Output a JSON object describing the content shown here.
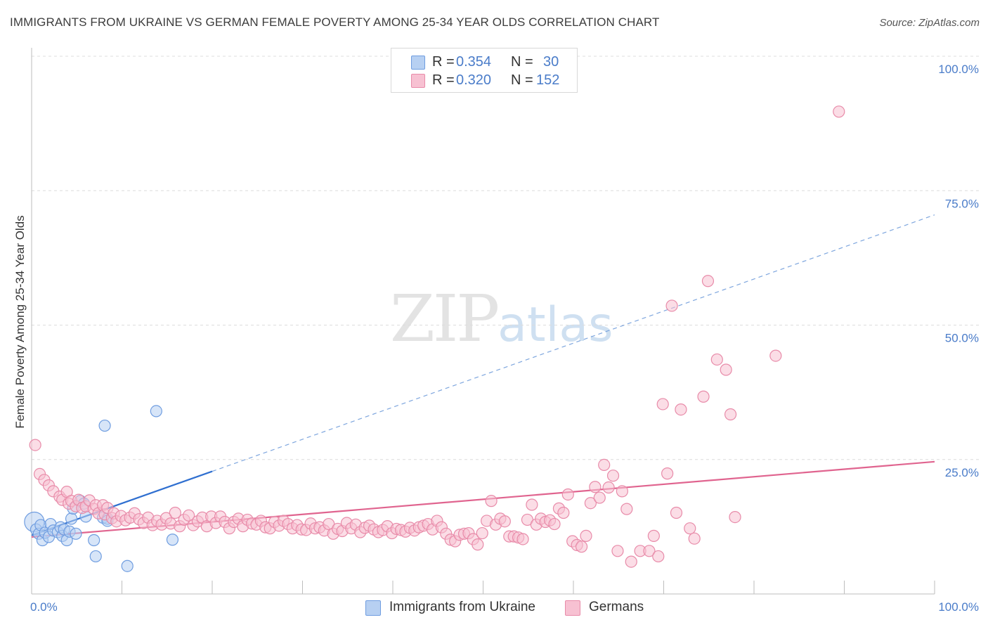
{
  "header": {
    "title": "IMMIGRANTS FROM UKRAINE VS GERMAN FEMALE POVERTY AMONG 25-34 YEAR OLDS CORRELATION CHART",
    "source": "Source: ZipAtlas.com"
  },
  "legend_top": {
    "rows": [
      {
        "r_label": "R =",
        "r_value": "0.354",
        "n_label": "N =",
        "n_value": "30"
      },
      {
        "r_label": "R =",
        "r_value": "0.320",
        "n_label": "N =",
        "n_value": "152"
      }
    ]
  },
  "legend_bottom": {
    "items": [
      "Immigrants from Ukraine",
      "Germans"
    ]
  },
  "watermark": {
    "zip": "ZIP",
    "atlas": "atlas"
  },
  "colors": {
    "ukraine_fill": "#b7d0f2",
    "ukraine_stroke": "#6f9de0",
    "ukraine_line": "#2f6fd0",
    "germans_fill": "#f7c1d2",
    "germans_stroke": "#e88ba9",
    "germans_line": "#e0648f",
    "tick_text": "#4a7cc9",
    "grid": "#dcdcdc"
  },
  "chart_data": {
    "type": "scatter",
    "title": "IMMIGRANTS FROM UKRAINE VS GERMAN FEMALE POVERTY AMONG 25-34 YEAR OLDS CORRELATION CHART",
    "xlabel": "",
    "ylabel": "Female Poverty Among 25-34 Year Olds",
    "xlim": [
      0,
      100
    ],
    "ylim": [
      0,
      100
    ],
    "x_tick_labels": [
      "0.0%",
      "100.0%"
    ],
    "y_tick_labels": [
      "100.0%",
      "75.0%",
      "50.0%",
      "25.0%"
    ],
    "y_ticks": [
      100,
      75,
      50,
      25
    ],
    "grid": true,
    "legend_position": "top-center",
    "series": [
      {
        "name": "Immigrants from Ukraine",
        "r": 0.354,
        "n": 30,
        "trend": {
          "x0": 0,
          "y0": 10.9,
          "x1": 20,
          "y1": 22.8,
          "extend_to_x": 100,
          "extend_to_y": 70.5
        },
        "points": [
          [
            0.3,
            13.4
          ],
          [
            0.5,
            12.0
          ],
          [
            0.8,
            11.2
          ],
          [
            1.0,
            12.8
          ],
          [
            1.2,
            10.0
          ],
          [
            1.5,
            11.4
          ],
          [
            1.9,
            10.6
          ],
          [
            2.1,
            13.0
          ],
          [
            2.4,
            11.8
          ],
          [
            2.9,
            11.5
          ],
          [
            3.2,
            12.4
          ],
          [
            3.4,
            10.8
          ],
          [
            3.6,
            12.0
          ],
          [
            3.9,
            10.0
          ],
          [
            4.2,
            11.6
          ],
          [
            4.4,
            14.0
          ],
          [
            4.6,
            15.9
          ],
          [
            4.9,
            11.2
          ],
          [
            5.4,
            17.3
          ],
          [
            5.8,
            16.8
          ],
          [
            6.0,
            14.4
          ],
          [
            6.9,
            10.0
          ],
          [
            7.1,
            7.0
          ],
          [
            7.9,
            14.2
          ],
          [
            8.4,
            14.0
          ],
          [
            8.1,
            31.3
          ],
          [
            8.4,
            13.6
          ],
          [
            10.6,
            5.2
          ],
          [
            13.8,
            34.0
          ],
          [
            15.6,
            10.1
          ]
        ]
      },
      {
        "name": "Germans",
        "r": 0.32,
        "n": 152,
        "trend": {
          "x0": 0,
          "y0": 10.6,
          "x1": 100,
          "y1": 24.6
        },
        "points": [
          [
            0.4,
            27.7
          ],
          [
            0.9,
            22.3
          ],
          [
            1.4,
            21.2
          ],
          [
            1.9,
            20.2
          ],
          [
            2.4,
            19.1
          ],
          [
            3.1,
            18.1
          ],
          [
            3.4,
            17.5
          ],
          [
            3.9,
            19.0
          ],
          [
            4.1,
            16.8
          ],
          [
            4.4,
            17.3
          ],
          [
            4.9,
            16.3
          ],
          [
            5.2,
            17.5
          ],
          [
            5.6,
            16.0
          ],
          [
            6.0,
            16.3
          ],
          [
            6.4,
            17.4
          ],
          [
            6.9,
            15.8
          ],
          [
            7.1,
            16.5
          ],
          [
            7.4,
            15.0
          ],
          [
            7.9,
            16.5
          ],
          [
            8.1,
            14.8
          ],
          [
            8.4,
            16.0
          ],
          [
            8.9,
            14.1
          ],
          [
            9.1,
            15.0
          ],
          [
            9.4,
            13.5
          ],
          [
            9.9,
            14.5
          ],
          [
            10.4,
            13.7
          ],
          [
            10.9,
            14.2
          ],
          [
            11.4,
            15.0
          ],
          [
            11.9,
            13.9
          ],
          [
            12.4,
            13.2
          ],
          [
            12.9,
            14.2
          ],
          [
            13.4,
            12.8
          ],
          [
            13.9,
            13.6
          ],
          [
            14.4,
            12.9
          ],
          [
            14.9,
            14.1
          ],
          [
            15.4,
            13.1
          ],
          [
            15.9,
            15.1
          ],
          [
            16.4,
            12.6
          ],
          [
            16.9,
            13.8
          ],
          [
            17.4,
            14.6
          ],
          [
            17.9,
            12.8
          ],
          [
            18.4,
            13.5
          ],
          [
            18.9,
            14.2
          ],
          [
            19.4,
            12.6
          ],
          [
            19.9,
            14.4
          ],
          [
            20.4,
            13.2
          ],
          [
            20.9,
            14.4
          ],
          [
            21.4,
            13.4
          ],
          [
            21.9,
            12.2
          ],
          [
            22.4,
            13.4
          ],
          [
            22.9,
            14.0
          ],
          [
            23.4,
            12.6
          ],
          [
            23.9,
            13.8
          ],
          [
            24.4,
            13.1
          ],
          [
            24.9,
            12.9
          ],
          [
            25.4,
            13.6
          ],
          [
            25.9,
            12.4
          ],
          [
            26.4,
            12.2
          ],
          [
            26.9,
            13.4
          ],
          [
            27.4,
            12.7
          ],
          [
            27.9,
            13.6
          ],
          [
            28.4,
            13.0
          ],
          [
            28.9,
            12.2
          ],
          [
            29.4,
            12.8
          ],
          [
            29.9,
            12.0
          ],
          [
            30.4,
            11.9
          ],
          [
            30.9,
            13.1
          ],
          [
            31.4,
            12.2
          ],
          [
            31.9,
            12.4
          ],
          [
            32.4,
            11.8
          ],
          [
            32.9,
            13.0
          ],
          [
            33.4,
            11.2
          ],
          [
            33.9,
            12.1
          ],
          [
            34.4,
            11.7
          ],
          [
            34.9,
            13.2
          ],
          [
            35.4,
            12.2
          ],
          [
            35.9,
            12.9
          ],
          [
            36.4,
            11.5
          ],
          [
            36.9,
            12.3
          ],
          [
            37.4,
            12.7
          ],
          [
            37.9,
            12.0
          ],
          [
            38.4,
            11.5
          ],
          [
            38.9,
            11.9
          ],
          [
            39.4,
            12.6
          ],
          [
            39.9,
            11.3
          ],
          [
            40.4,
            12.1
          ],
          [
            40.9,
            11.9
          ],
          [
            41.4,
            11.6
          ],
          [
            41.9,
            12.3
          ],
          [
            42.4,
            11.8
          ],
          [
            42.9,
            12.4
          ],
          [
            43.4,
            12.7
          ],
          [
            43.9,
            13.0
          ],
          [
            44.4,
            12.0
          ],
          [
            44.9,
            13.6
          ],
          [
            45.4,
            12.4
          ],
          [
            45.9,
            11.2
          ],
          [
            46.4,
            10.1
          ],
          [
            46.9,
            9.8
          ],
          [
            47.4,
            11.0
          ],
          [
            47.9,
            11.2
          ],
          [
            48.4,
            11.3
          ],
          [
            48.9,
            10.2
          ],
          [
            49.4,
            9.2
          ],
          [
            49.9,
            11.3
          ],
          [
            50.4,
            13.6
          ],
          [
            50.9,
            17.3
          ],
          [
            51.4,
            12.9
          ],
          [
            51.9,
            14.0
          ],
          [
            52.4,
            13.5
          ],
          [
            52.9,
            10.7
          ],
          [
            53.4,
            10.7
          ],
          [
            53.9,
            10.5
          ],
          [
            54.4,
            10.2
          ],
          [
            54.9,
            13.8
          ],
          [
            55.4,
            16.6
          ],
          [
            55.9,
            12.9
          ],
          [
            56.4,
            14.0
          ],
          [
            56.9,
            13.4
          ],
          [
            57.4,
            13.7
          ],
          [
            57.9,
            13.0
          ],
          [
            58.4,
            15.9
          ],
          [
            58.9,
            15.1
          ],
          [
            59.4,
            18.5
          ],
          [
            59.9,
            9.8
          ],
          [
            60.4,
            9.1
          ],
          [
            60.9,
            8.8
          ],
          [
            61.4,
            10.8
          ],
          [
            61.9,
            16.9
          ],
          [
            62.4,
            19.9
          ],
          [
            62.9,
            17.9
          ],
          [
            63.4,
            24.0
          ],
          [
            63.9,
            19.8
          ],
          [
            64.4,
            22.0
          ],
          [
            64.9,
            8.0
          ],
          [
            65.4,
            19.1
          ],
          [
            65.9,
            15.8
          ],
          [
            66.4,
            6.0
          ],
          [
            67.4,
            8.0
          ],
          [
            68.4,
            8.0
          ],
          [
            68.9,
            10.8
          ],
          [
            69.4,
            7.0
          ],
          [
            69.9,
            35.3
          ],
          [
            70.4,
            22.4
          ],
          [
            70.9,
            53.6
          ],
          [
            71.4,
            15.1
          ],
          [
            71.9,
            34.3
          ],
          [
            72.9,
            12.2
          ],
          [
            73.4,
            10.3
          ],
          [
            74.4,
            36.7
          ],
          [
            74.9,
            58.2
          ],
          [
            75.9,
            43.6
          ],
          [
            76.9,
            41.7
          ],
          [
            77.4,
            33.4
          ],
          [
            77.9,
            14.3
          ],
          [
            82.4,
            44.3
          ],
          [
            89.4,
            89.7
          ]
        ]
      }
    ]
  }
}
